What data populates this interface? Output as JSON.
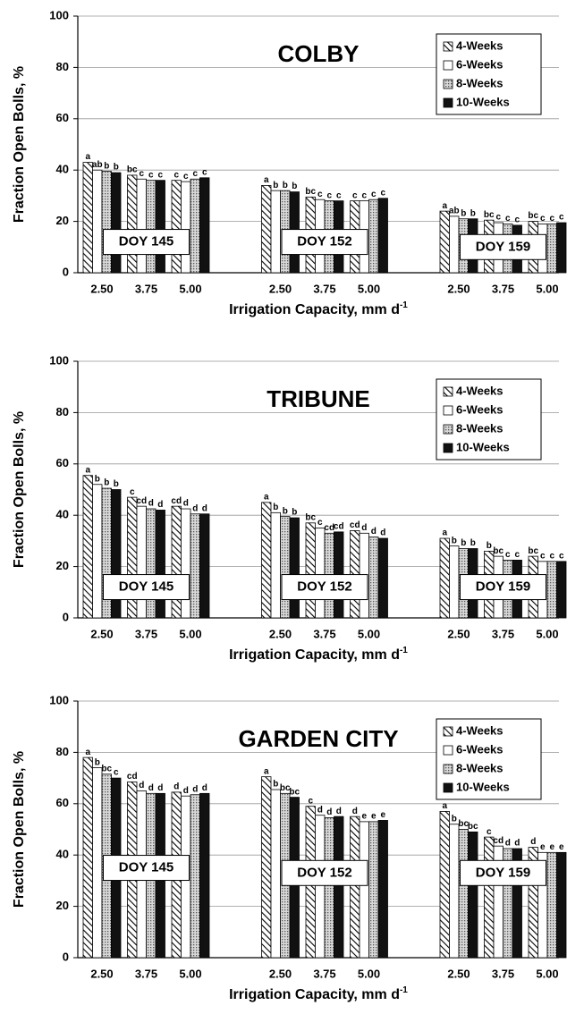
{
  "chart_data": [
    {
      "type": "bar",
      "title": "COLBY",
      "ylabel": "Fraction Open Bolls, %",
      "xlabel": [
        "Irrigation Capacity, mm d",
        "-1"
      ],
      "ylim": [
        0,
        100
      ],
      "yticks": [
        0,
        20,
        40,
        60,
        80,
        100
      ],
      "grid": true,
      "legend": "upper right",
      "groups": [
        "DOY 145",
        "DOY 152",
        "DOY 159"
      ],
      "categories": [
        "2.50",
        "3.75",
        "5.00",
        "2.50",
        "3.75",
        "5.00",
        "2.50",
        "3.75",
        "5.00"
      ],
      "series": [
        {
          "name": "4-Weeks",
          "style": "hatch",
          "color": "#000000",
          "values": [
            43,
            38,
            36,
            34,
            29.5,
            28,
            24,
            20.5,
            20
          ],
          "letters": [
            "a",
            "bc",
            "c",
            "a",
            "bc",
            "c",
            "a",
            "bc",
            "bc"
          ]
        },
        {
          "name": "6-Weeks",
          "style": "white",
          "color": "#ffffff",
          "values": [
            40,
            36.5,
            35.5,
            32,
            28.5,
            28,
            22,
            19.5,
            19
          ],
          "letters": [
            "ab",
            "c",
            "c",
            "b",
            "c",
            "c",
            "ab",
            "c",
            "c"
          ]
        },
        {
          "name": "8-Weeks",
          "style": "dots",
          "color": "#9a9a9a",
          "values": [
            39.5,
            36,
            36.5,
            32,
            28,
            28.5,
            21,
            19,
            19
          ],
          "letters": [
            "b",
            "c",
            "c",
            "b",
            "c",
            "c",
            "b",
            "c",
            "c"
          ]
        },
        {
          "name": "10-Weeks",
          "style": "solid",
          "color": "#111111",
          "values": [
            39,
            36,
            37,
            31.5,
            28,
            29,
            21,
            18.5,
            19.5
          ],
          "letters": [
            "b",
            "c",
            "c",
            "b",
            "c",
            "c",
            "b",
            "c",
            "c"
          ]
        }
      ]
    },
    {
      "type": "bar",
      "title": "TRIBUNE",
      "ylabel": "Fraction Open Bolls, %",
      "xlabel": [
        "Irrigation Capacity, mm d",
        "-1"
      ],
      "ylim": [
        0,
        100
      ],
      "yticks": [
        0,
        20,
        40,
        60,
        80,
        100
      ],
      "grid": true,
      "legend": "upper right",
      "groups": [
        "DOY 145",
        "DOY 152",
        "DOY 159"
      ],
      "categories": [
        "2.50",
        "3.75",
        "5.00",
        "2.50",
        "3.75",
        "5.00",
        "2.50",
        "3.75",
        "5.00"
      ],
      "series": [
        {
          "name": "4-Weeks",
          "style": "hatch",
          "color": "#000000",
          "values": [
            55.5,
            47,
            43.5,
            45,
            37,
            34,
            31,
            26,
            24
          ],
          "letters": [
            "a",
            "c",
            "cd",
            "a",
            "bc",
            "cd",
            "a",
            "b",
            "bc"
          ]
        },
        {
          "name": "6-Weeks",
          "style": "white",
          "color": "#ffffff",
          "values": [
            52,
            43.5,
            42.5,
            41,
            35,
            33,
            28,
            24,
            22
          ],
          "letters": [
            "b",
            "cd",
            "d",
            "b",
            "c",
            "d",
            "b",
            "bc",
            "c"
          ]
        },
        {
          "name": "8-Weeks",
          "style": "dots",
          "color": "#9a9a9a",
          "values": [
            50.5,
            42.5,
            40.5,
            39.5,
            33,
            31.5,
            27,
            22.5,
            22
          ],
          "letters": [
            "b",
            "d",
            "d",
            "b",
            "cd",
            "d",
            "b",
            "c",
            "c"
          ]
        },
        {
          "name": "10-Weeks",
          "style": "solid",
          "color": "#111111",
          "values": [
            50,
            42,
            40.5,
            39,
            33.5,
            31,
            27,
            22.5,
            22
          ],
          "letters": [
            "b",
            "d",
            "d",
            "b",
            "cd",
            "d",
            "b",
            "c",
            "c"
          ]
        }
      ]
    },
    {
      "type": "bar",
      "title": "GARDEN CITY",
      "ylabel": "Fraction Open Bolls, %",
      "xlabel": [
        "Irrigation Capacity, mm d",
        "-1"
      ],
      "ylim": [
        0,
        100
      ],
      "yticks": [
        0,
        20,
        40,
        60,
        80,
        100
      ],
      "grid": true,
      "legend": "upper right",
      "groups": [
        "DOY 145",
        "DOY 152",
        "DOY 159"
      ],
      "categories": [
        "2.50",
        "3.75",
        "5.00",
        "2.50",
        "3.75",
        "5.00",
        "2.50",
        "3.75",
        "5.00"
      ],
      "series": [
        {
          "name": "4-Weeks",
          "style": "hatch",
          "color": "#000000",
          "values": [
            78,
            68.5,
            64.5,
            70.5,
            59,
            55,
            57,
            47,
            43
          ],
          "letters": [
            "a",
            "cd",
            "d",
            "a",
            "c",
            "d",
            "a",
            "c",
            "d"
          ]
        },
        {
          "name": "6-Weeks",
          "style": "white",
          "color": "#ffffff",
          "values": [
            74,
            65,
            63,
            65.5,
            55.5,
            53,
            52,
            43.5,
            41
          ],
          "letters": [
            "b",
            "d",
            "d",
            "b",
            "d",
            "e",
            "b",
            "cd",
            "e"
          ]
        },
        {
          "name": "8-Weeks",
          "style": "dots",
          "color": "#9a9a9a",
          "values": [
            71.5,
            64,
            63.5,
            64,
            54.5,
            53,
            50,
            42.5,
            41
          ],
          "letters": [
            "bc",
            "d",
            "d",
            "bc",
            "d",
            "e",
            "bc",
            "d",
            "e"
          ]
        },
        {
          "name": "10-Weeks",
          "style": "solid",
          "color": "#111111",
          "values": [
            70,
            64,
            64,
            62.5,
            55,
            53.5,
            49,
            42.5,
            41
          ],
          "letters": [
            "c",
            "d",
            "d",
            "bc",
            "d",
            "e",
            "bc",
            "d",
            "e"
          ]
        }
      ]
    }
  ]
}
